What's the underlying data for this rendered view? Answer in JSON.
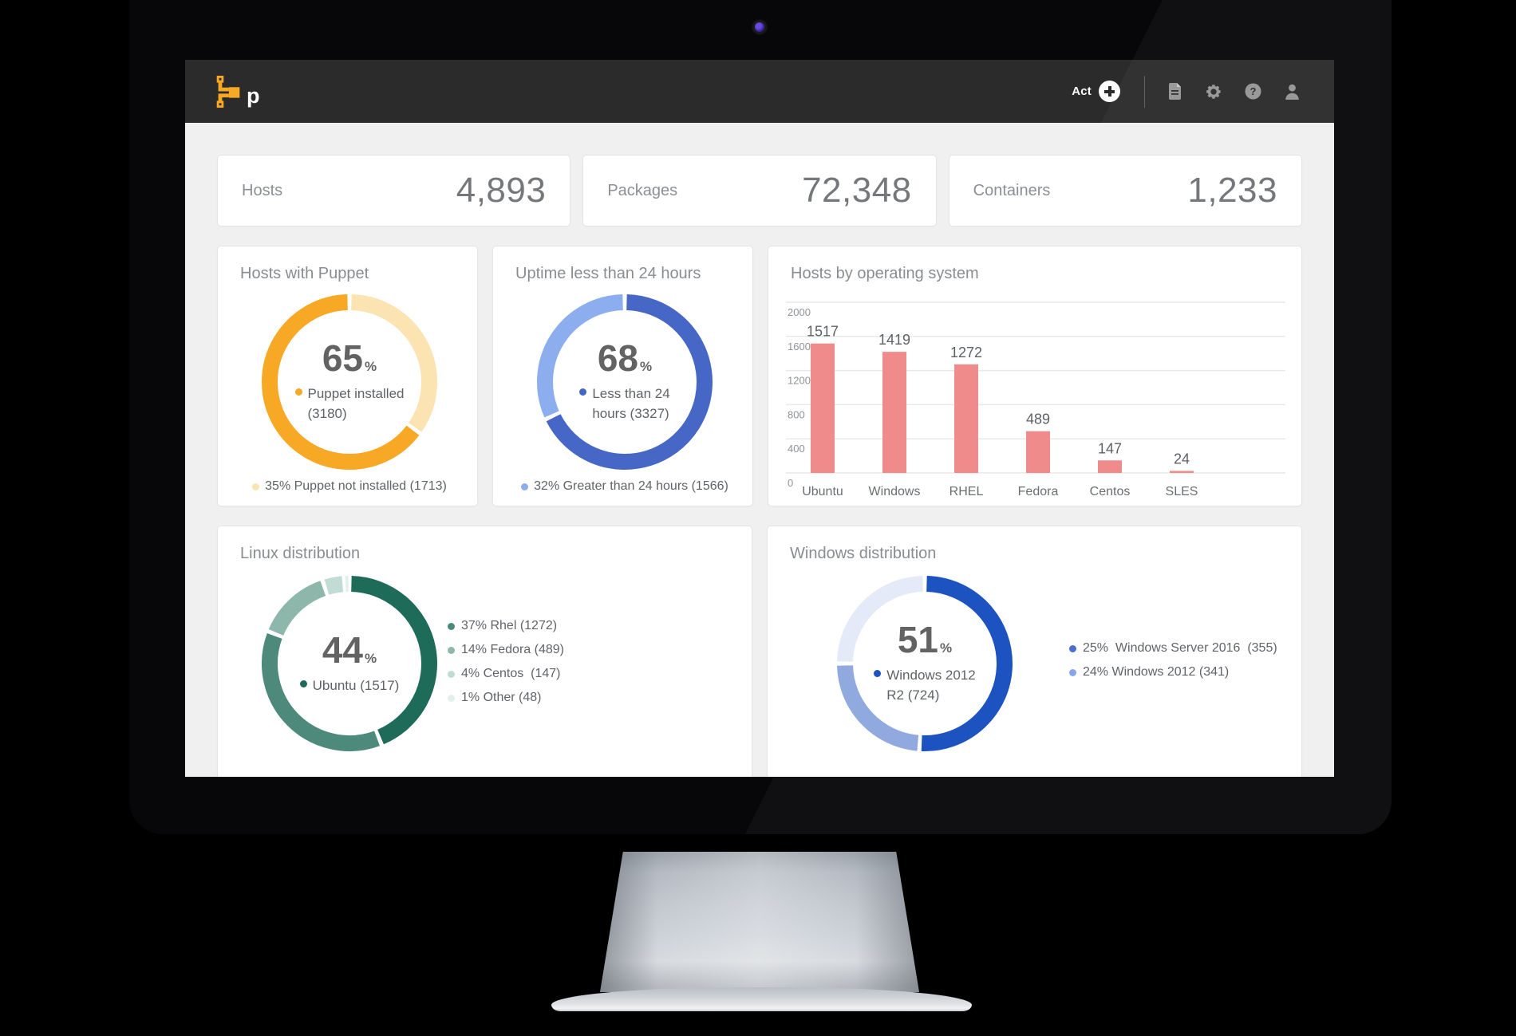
{
  "topbar": {
    "logo_text": "p",
    "act_label": "Act",
    "icon_names": [
      "document-icon",
      "gear-icon",
      "help-icon",
      "user-icon"
    ],
    "accent_orange": "#f7a825",
    "bar_color": "#2b2b2b"
  },
  "stats": [
    {
      "label": "Hosts",
      "value": "4,893"
    },
    {
      "label": "Packages",
      "value": "72,348"
    },
    {
      "label": "Containers",
      "value": "1,233"
    }
  ],
  "chart_data": [
    {
      "type": "donut",
      "title": "Hosts with Puppet",
      "center": {
        "value": "65",
        "unit": "%",
        "dot_color": "#f7a825",
        "label_lines": [
          "Puppet installed",
          "(3180)"
        ]
      },
      "segments": [
        {
          "label": "Puppet not installed",
          "pct": 35,
          "value": 1713,
          "color": "#fbe3b2"
        },
        {
          "label": "Puppet installed",
          "pct": 65,
          "value": 3180,
          "color": "#f7a825"
        }
      ],
      "bottom_legend": {
        "text": "35% Puppet not installed (1713)",
        "dot_color": "#fbe3b2"
      }
    },
    {
      "type": "donut",
      "title": "Uptime less than 24 hours",
      "center": {
        "value": "68",
        "unit": "%",
        "dot_color": "#4466c6",
        "label_lines": [
          "Less than 24",
          "hours (3327)"
        ]
      },
      "segments": [
        {
          "label": "Less than 24 hours",
          "pct": 68,
          "value": 3327,
          "color": "#4767c6"
        },
        {
          "label": "Greater than 24 hours",
          "pct": 32,
          "value": 1566,
          "color": "#8cadee"
        }
      ],
      "bottom_legend": {
        "text": "32% Greater than 24 hours (1566)",
        "dot_color": "#8cadee"
      }
    },
    {
      "type": "bar",
      "title": "Hosts by operating system",
      "categories": [
        "Ubuntu",
        "Windows",
        "RHEL",
        "Fedora",
        "Centos",
        "SLES"
      ],
      "values": [
        1517,
        1419,
        1272,
        489,
        147,
        24
      ],
      "bar_color": "#ef8b8b",
      "ylim": [
        0,
        2000
      ],
      "yticks": [
        2000,
        1600,
        1200,
        800,
        400,
        0
      ],
      "grid": true,
      "xlabel": "",
      "ylabel": ""
    },
    {
      "type": "donut",
      "title": "Linux distribution",
      "center": {
        "value": "44",
        "unit": "%",
        "dot_color": "#1e6b59",
        "label_lines": [
          "Ubuntu (1517)"
        ]
      },
      "segments": [
        {
          "label": "Ubuntu",
          "pct": 44,
          "value": 1517,
          "color": "#1e6b59"
        },
        {
          "label": "Rhel",
          "pct": 37,
          "value": 1272,
          "color": "#4d8a7c"
        },
        {
          "label": "Fedora",
          "pct": 14,
          "value": 489,
          "color": "#8db7ab"
        },
        {
          "label": "Centos",
          "pct": 4,
          "value": 147,
          "color": "#c0dcd4"
        },
        {
          "label": "Other",
          "pct": 1,
          "value": 48,
          "color": "#e2f0ec"
        }
      ],
      "side_legend": [
        {
          "text": "37% Rhel (1272)",
          "dot_color": "#4d8a7c"
        },
        {
          "text": "14% Fedora (489)",
          "dot_color": "#8db7ab"
        },
        {
          "text": "4% Centos  (147)",
          "dot_color": "#c0dcd4"
        },
        {
          "text": "1% Other (48)",
          "dot_color": "#e2f0ec"
        }
      ],
      "legend_position": "right"
    },
    {
      "type": "donut",
      "title": "Windows distribution",
      "center": {
        "value": "51",
        "unit": "%",
        "dot_color": "#1d52c1",
        "label_lines": [
          "Windows 2012",
          "R2 (724)"
        ]
      },
      "segments": [
        {
          "label": "Windows 2012 R2",
          "pct": 51,
          "value": 724,
          "color": "#1d52c1"
        },
        {
          "label": "Windows 2012",
          "pct": 24,
          "value": 341,
          "color": "#90a9de"
        },
        {
          "label": "Windows Server 2016",
          "pct": 25,
          "value": 355,
          "color": "#e4eaf7"
        }
      ],
      "side_legend": [
        {
          "text": "25%  Windows Server 2016  (355)",
          "dot_color": "#4b6fd1"
        },
        {
          "text": "24% Windows 2012 (341)",
          "dot_color": "#86a6e9"
        }
      ],
      "legend_position": "right"
    }
  ]
}
